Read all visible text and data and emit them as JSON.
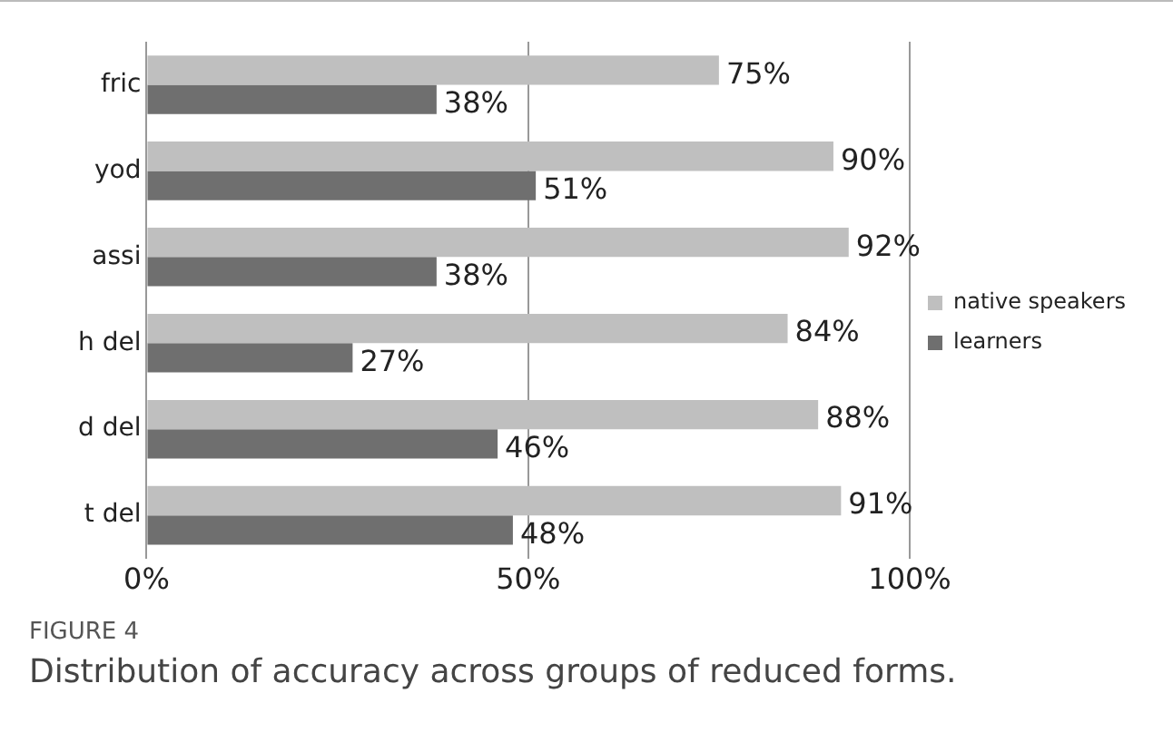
{
  "chart_data": {
    "type": "bar",
    "orientation": "horizontal",
    "categories": [
      "fric",
      "yod",
      "assi",
      "h del",
      "d del",
      "t del"
    ],
    "series": [
      {
        "name": "native speakers",
        "color": "#bfbfbf",
        "values": [
          75,
          90,
          92,
          84,
          88,
          91
        ],
        "value_labels": [
          "75%",
          "90%",
          "92%",
          "84%",
          "88%",
          "91%"
        ]
      },
      {
        "name": "learners",
        "color": "#6f6f6f",
        "values": [
          38,
          51,
          38,
          27,
          46,
          48
        ],
        "value_labels": [
          "38%",
          "51%",
          "38%",
          "27%",
          "46%",
          "48%"
        ]
      }
    ],
    "xlim": [
      0,
      100
    ],
    "xticks": [
      {
        "value": 0,
        "label": "0%"
      },
      {
        "value": 50,
        "label": "50%"
      },
      {
        "value": 100,
        "label": "100%"
      }
    ],
    "grid": "x",
    "legend": "right",
    "annotations": [
      "FIGURE 4",
      "Distribution of accuracy across groups of reduced forms."
    ]
  }
}
